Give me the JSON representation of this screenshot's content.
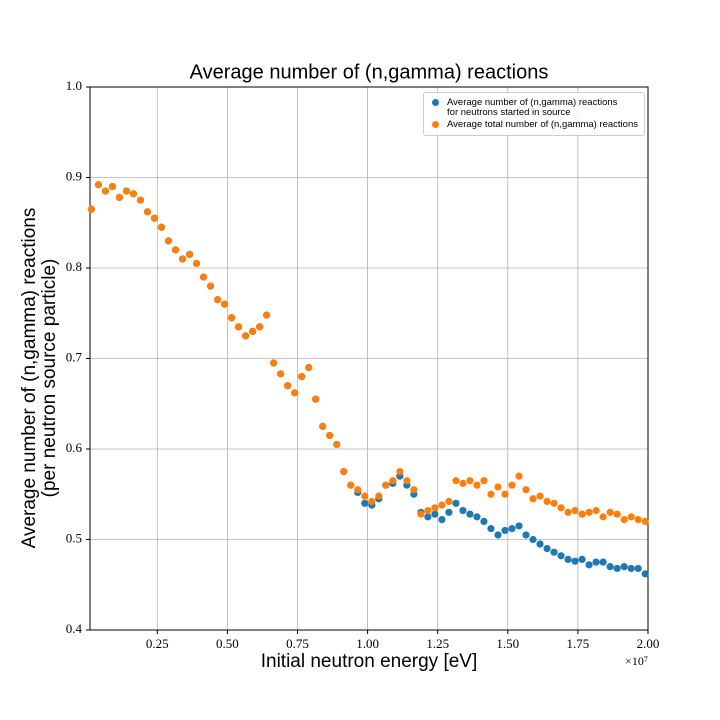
{
  "chart_data": {
    "type": "scatter",
    "title": "Average number of (n,gamma) reactions",
    "xlabel": "Initial neutron energy [eV]",
    "ylabel": "Average number of (n,gamma) reactions\n(per neutron source particle)",
    "x_offset_label": "×10⁷",
    "x": [
      150000,
      400000,
      650000,
      900000,
      1150000,
      1400000,
      1650000,
      1900000,
      2150000,
      2400000,
      2650000,
      2900000,
      3150000,
      3400000,
      3650000,
      3900000,
      4150000,
      4400000,
      4650000,
      4900000,
      5150000,
      5400000,
      5650000,
      5900000,
      6150000,
      6400000,
      6650000,
      6900000,
      7150000,
      7400000,
      7650000,
      7900000,
      8150000,
      8400000,
      8650000,
      8900000,
      9150000,
      9400000,
      9650000,
      9900000,
      10150000,
      10400000,
      10650000,
      10900000,
      11150000,
      11400000,
      11650000,
      11900000,
      12150000,
      12400000,
      12650000,
      12900000,
      13150000,
      13400000,
      13650000,
      13900000,
      14150000,
      14400000,
      14650000,
      14900000,
      15150000,
      15400000,
      15650000,
      15900000,
      16150000,
      16400000,
      16650000,
      16900000,
      17150000,
      17400000,
      17650000,
      17900000,
      18150000,
      18400000,
      18650000,
      18900000,
      19150000,
      19400000,
      19650000,
      19900000
    ],
    "series": [
      {
        "name": "Average number of (n,gamma) reactions\nfor neutrons started in source",
        "color": "#1f77b4",
        "values": [
          0.865,
          0.892,
          0.885,
          0.89,
          0.878,
          0.885,
          0.882,
          0.875,
          0.862,
          0.855,
          0.845,
          0.83,
          0.82,
          0.81,
          0.815,
          0.805,
          0.79,
          0.78,
          0.765,
          0.76,
          0.745,
          0.735,
          0.725,
          0.73,
          0.735,
          0.748,
          0.695,
          0.683,
          0.67,
          0.662,
          0.68,
          0.69,
          0.655,
          0.625,
          0.615,
          0.605,
          0.575,
          0.56,
          0.552,
          0.54,
          0.538,
          0.545,
          0.56,
          0.562,
          0.57,
          0.56,
          0.55,
          0.53,
          0.525,
          0.528,
          0.522,
          0.53,
          0.54,
          0.532,
          0.528,
          0.525,
          0.52,
          0.512,
          0.505,
          0.51,
          0.512,
          0.515,
          0.505,
          0.5,
          0.495,
          0.49,
          0.486,
          0.482,
          0.478,
          0.476,
          0.478,
          0.472,
          0.475,
          0.475,
          0.47,
          0.468,
          0.47,
          0.468,
          0.468,
          0.462
        ]
      },
      {
        "name": "Average total number of (n,gamma) reactions",
        "color": "#ff7f0e",
        "values": [
          0.865,
          0.892,
          0.885,
          0.89,
          0.878,
          0.885,
          0.882,
          0.875,
          0.862,
          0.855,
          0.845,
          0.83,
          0.82,
          0.81,
          0.815,
          0.805,
          0.79,
          0.78,
          0.765,
          0.76,
          0.745,
          0.735,
          0.725,
          0.73,
          0.735,
          0.748,
          0.695,
          0.683,
          0.67,
          0.662,
          0.68,
          0.69,
          0.655,
          0.625,
          0.615,
          0.605,
          0.575,
          0.56,
          0.555,
          0.548,
          0.542,
          0.548,
          0.56,
          0.565,
          0.575,
          0.565,
          0.555,
          0.528,
          0.532,
          0.535,
          0.538,
          0.542,
          0.565,
          0.562,
          0.565,
          0.56,
          0.565,
          0.55,
          0.558,
          0.55,
          0.56,
          0.57,
          0.555,
          0.545,
          0.548,
          0.542,
          0.54,
          0.535,
          0.53,
          0.532,
          0.528,
          0.53,
          0.532,
          0.525,
          0.53,
          0.528,
          0.522,
          0.525,
          0.522,
          0.52
        ]
      }
    ],
    "xlim": [
      100000,
      20000000
    ],
    "ylim": [
      0.4,
      1
    ],
    "xticks": [
      {
        "value": 2500000,
        "label": "0.25"
      },
      {
        "value": 5000000,
        "label": "0.50"
      },
      {
        "value": 7500000,
        "label": "0.75"
      },
      {
        "value": 10000000,
        "label": "1.00"
      },
      {
        "value": 12500000,
        "label": "1.25"
      },
      {
        "value": 15000000,
        "label": "1.50"
      },
      {
        "value": 17500000,
        "label": "1.75"
      },
      {
        "value": 20000000,
        "label": "2.00"
      }
    ],
    "yticks": [
      0.4,
      0.5,
      0.6,
      0.7,
      0.8,
      0.9,
      {
        "value": 1,
        "label": "1.0"
      }
    ],
    "grid": true,
    "legend": "upper right"
  }
}
